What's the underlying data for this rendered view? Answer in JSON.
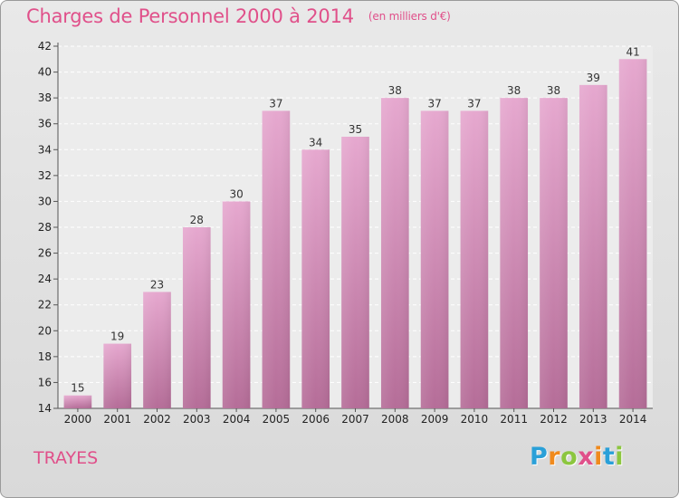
{
  "header": {
    "title": "Charges de Personnel 2000 à 2014",
    "subtitle": "(en milliers d'€)"
  },
  "footer": {
    "commune": "TRAYES",
    "logo_letters": [
      "P",
      "r",
      "o",
      "x",
      "i",
      "t",
      "i"
    ],
    "logo_colors": [
      "#2aa0d8",
      "#f08a1c",
      "#8cc63f",
      "#e0508a",
      "#f08a1c",
      "#2aa0d8",
      "#8cc63f"
    ]
  },
  "chart_data": {
    "type": "bar",
    "title": "Charges de Personnel 2000 à 2014",
    "subtitle": "(en milliers d'€)",
    "categories": [
      "2000",
      "2001",
      "2002",
      "2003",
      "2004",
      "2005",
      "2006",
      "2007",
      "2008",
      "2009",
      "2010",
      "2011",
      "2012",
      "2013",
      "2014"
    ],
    "values": [
      15,
      19,
      23,
      28,
      30,
      37,
      34,
      35,
      38,
      37,
      37,
      38,
      38,
      39,
      41
    ],
    "ylim": [
      14,
      42
    ],
    "yticks": [
      14,
      16,
      18,
      20,
      22,
      24,
      26,
      28,
      30,
      32,
      34,
      36,
      38,
      40,
      42
    ],
    "grid": true,
    "bar_color": "#d98cb8",
    "data_labels": true
  }
}
